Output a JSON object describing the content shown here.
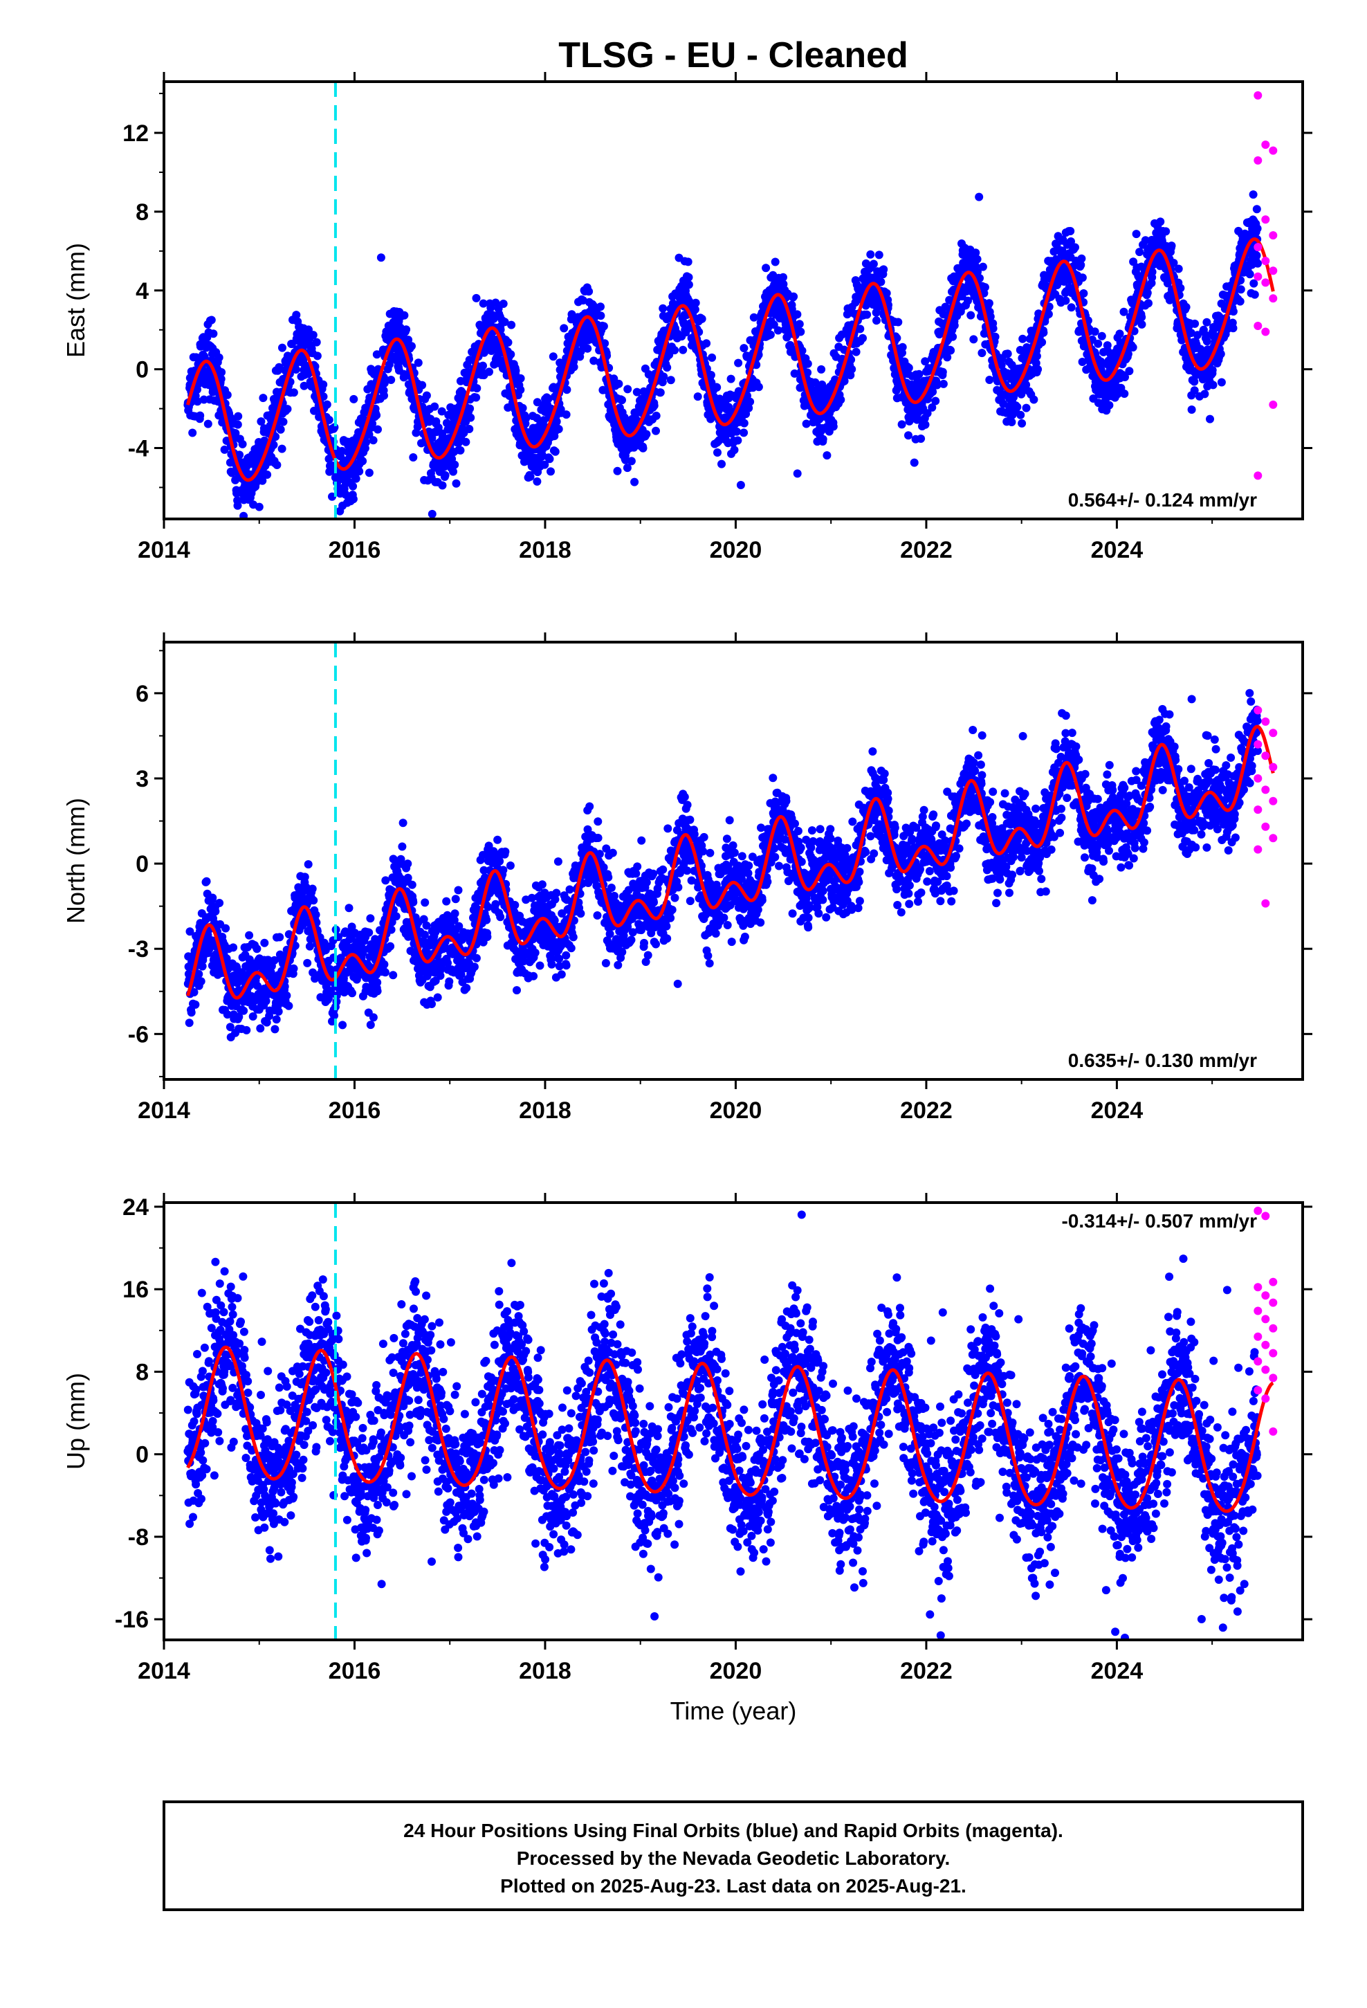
{
  "title": "TLSG  - EU - Cleaned",
  "xlabel": "Time (year)",
  "footer": {
    "line1": "24 Hour Positions Using Final Orbits (blue) and Rapid Orbits (magenta).",
    "line2": "Processed by the Nevada Geodetic Laboratory.",
    "line3": "Plotted on 2025-Aug-23. Last data on 2025-Aug-21."
  },
  "colors": {
    "final_orbits": "#0000ff",
    "rapid_orbits": "#ff00ff",
    "model_fit": "#ff0000",
    "equipment_change": "#00e5ee"
  },
  "chart_data": [
    {
      "type": "scatter",
      "name": "east",
      "ylabel": "East (mm)",
      "xlim": [
        2014.0,
        2025.95
      ],
      "ylim": [
        -7.6,
        14.6
      ],
      "yticks": [
        -4,
        0,
        4,
        8,
        12
      ],
      "xticks": [
        2014,
        2016,
        2018,
        2020,
        2022,
        2024
      ],
      "xtick_labels": [
        "2014",
        "2016",
        "2018",
        "2020",
        "2022",
        "2024"
      ],
      "rate_label": "0.564+/- 0.124 mm/yr",
      "rate_position": "bottom-right",
      "equipment_change_year": 2015.8,
      "data_span": [
        2014.25,
        2025.64
      ],
      "rapid_span": [
        2025.48,
        2025.64
      ],
      "model": {
        "offset": -3.0,
        "trend": 0.564,
        "annual_amp": 3.1,
        "annual_peak": 0.42,
        "semiannual_amp": 0.3,
        "semiannual_peak": 0.0
      },
      "scatter_sd": 0.9,
      "rapid_values": [
        13.9,
        11.4,
        11.1,
        10.6,
        7.6,
        6.8,
        6.2,
        5.5,
        5.0,
        4.7,
        4.4,
        3.6,
        2.2,
        1.9,
        -1.8,
        -5.4
      ]
    },
    {
      "type": "scatter",
      "name": "north",
      "ylabel": "North (mm)",
      "xlim": [
        2014.0,
        2025.95
      ],
      "ylim": [
        -7.6,
        7.8
      ],
      "yticks": [
        -6,
        -3,
        0,
        3,
        6
      ],
      "xticks": [
        2014,
        2016,
        2018,
        2020,
        2022,
        2024
      ],
      "xtick_labels": [
        "2014",
        "2016",
        "2018",
        "2020",
        "2022",
        "2024"
      ],
      "rate_label": "0.635+/- 0.130 mm/yr",
      "rate_position": "bottom-right",
      "equipment_change_year": 2015.8,
      "data_span": [
        2014.25,
        2025.64
      ],
      "rapid_span": [
        2025.48,
        2025.64
      ],
      "model": {
        "offset": -4.1,
        "trend": 0.635,
        "annual_amp": 1.0,
        "annual_peak": 0.47,
        "semiannual_amp": 0.8,
        "semiannual_peak": 0.47
      },
      "scatter_sd": 0.7,
      "rapid_values": [
        5.4,
        5.0,
        4.6,
        4.2,
        3.8,
        3.4,
        3.0,
        2.6,
        2.2,
        1.9,
        1.3,
        0.9,
        0.5,
        -1.4
      ]
    },
    {
      "type": "scatter",
      "name": "up",
      "ylabel": "Up (mm)",
      "xlim": [
        2014.0,
        2025.95
      ],
      "ylim": [
        -18,
        24.4
      ],
      "yticks": [
        -16,
        -8,
        0,
        8,
        16,
        24
      ],
      "xticks": [
        2014,
        2016,
        2018,
        2020,
        2022,
        2024
      ],
      "xtick_labels": [
        "2014",
        "2016",
        "2018",
        "2020",
        "2022",
        "2024"
      ],
      "rate_label": "-0.314+/- 0.507 mm/yr",
      "rate_position": "top-right",
      "equipment_change_year": 2015.8,
      "data_span": [
        2014.25,
        2025.64
      ],
      "rapid_span": [
        2025.48,
        2025.64
      ],
      "model": {
        "offset": 3.6,
        "trend": -0.314,
        "annual_amp": 6.3,
        "annual_peak": 0.65,
        "semiannual_amp": 0.6,
        "semiannual_peak": 0.15
      },
      "scatter_sd": 3.7,
      "rapid_values": [
        23.6,
        23.1,
        16.7,
        16.2,
        15.4,
        14.7,
        13.9,
        13.1,
        12.2,
        11.4,
        10.6,
        9.8,
        9.0,
        8.2,
        7.4,
        6.2,
        5.4,
        2.2
      ]
    }
  ]
}
